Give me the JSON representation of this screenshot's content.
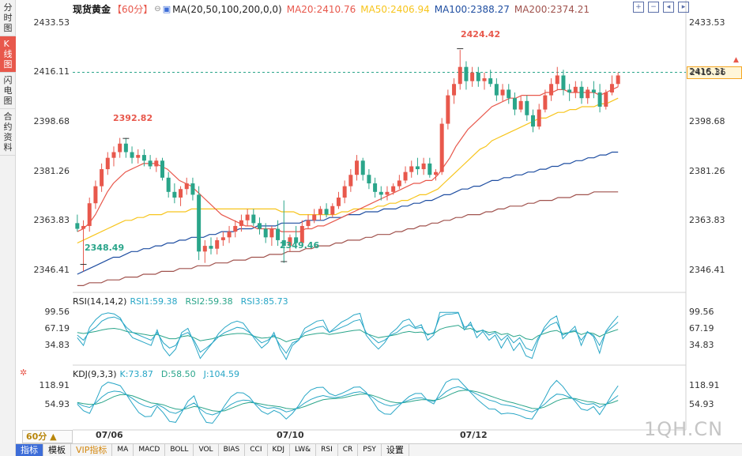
{
  "left_tabs": [
    {
      "label": "分时图",
      "active": false
    },
    {
      "label": "K线图",
      "active": true
    },
    {
      "label": "闪电图",
      "active": false
    },
    {
      "label": "合约资料",
      "active": false
    }
  ],
  "legend": {
    "symbol": "现货黄金",
    "period": "【60分】",
    "ma_label": "MA(20,50,100,200,0,0)",
    "ma20": "MA20:2410.76",
    "ma50": "MA50:2406.94",
    "ma100": "MA100:2388.27",
    "ma200": "MA200:2374.21"
  },
  "rsi_legend": {
    "title": "RSI(14,14,2)",
    "rsi1": "RSI1:59.38",
    "rsi2": "RSI2:59.38",
    "rsi3": "RSI3:85.73"
  },
  "kdj_legend": {
    "title": "KDJ(9,3,3)",
    "k": "K:73.87",
    "d": "D:58.50",
    "j": "J:104.59"
  },
  "price_axis": [
    "2433.53",
    "2416.11",
    "2398.68",
    "2381.26",
    "2363.83",
    "2346.41"
  ],
  "rsi_axis": [
    "99.56",
    "67.19",
    "34.83"
  ],
  "kdj_axis": [
    "118.91",
    "54.93"
  ],
  "current_price": "2415.36",
  "annotations": {
    "high1": "2392.82",
    "low1": "2348.49",
    "low2": "2349.46",
    "high2": "2424.42"
  },
  "dates": [
    "07/06",
    "07/10",
    "07/12"
  ],
  "period_select": "60分 ▲",
  "bottom_tabs": [
    "指标",
    "模板",
    "VIP指标",
    "MA",
    "MACD",
    "BOLL",
    "VOL",
    "BIAS",
    "CCI",
    "KDJ",
    "LW&",
    "RSI",
    "CR",
    "PSY",
    "设置"
  ],
  "watermark": "1QH.CN",
  "colors": {
    "up": "#e8584c",
    "down": "#2aa58a",
    "ma20": "#e8584c",
    "ma50": "#f7c51d",
    "ma100": "#1f4ea1",
    "ma200": "#a0524d",
    "rsi_a": "#28a6c6",
    "rsi_b": "#2aa58a",
    "price_line": "#2aa58a"
  },
  "chart_data": {
    "type": "candlestick",
    "y_range": [
      2340,
      2436
    ],
    "candles": [
      {
        "o": 2363,
        "h": 2366,
        "l": 2360,
        "c": 2361
      },
      {
        "o": 2361,
        "h": 2364,
        "l": 2346,
        "c": 2362
      },
      {
        "o": 2362,
        "h": 2372,
        "l": 2360,
        "c": 2370
      },
      {
        "o": 2370,
        "h": 2378,
        "l": 2368,
        "c": 2376
      },
      {
        "o": 2376,
        "h": 2384,
        "l": 2374,
        "c": 2382
      },
      {
        "o": 2382,
        "h": 2388,
        "l": 2380,
        "c": 2386
      },
      {
        "o": 2386,
        "h": 2390,
        "l": 2383,
        "c": 2388
      },
      {
        "o": 2388,
        "h": 2393,
        "l": 2386,
        "c": 2391
      },
      {
        "o": 2391,
        "h": 2393,
        "l": 2386,
        "c": 2388
      },
      {
        "o": 2388,
        "h": 2390,
        "l": 2384,
        "c": 2386
      },
      {
        "o": 2386,
        "h": 2389,
        "l": 2384,
        "c": 2387
      },
      {
        "o": 2387,
        "h": 2389,
        "l": 2383,
        "c": 2385
      },
      {
        "o": 2385,
        "h": 2387,
        "l": 2382,
        "c": 2383
      },
      {
        "o": 2383,
        "h": 2386,
        "l": 2381,
        "c": 2385
      },
      {
        "o": 2385,
        "h": 2386,
        "l": 2378,
        "c": 2379
      },
      {
        "o": 2379,
        "h": 2381,
        "l": 2372,
        "c": 2374
      },
      {
        "o": 2374,
        "h": 2377,
        "l": 2370,
        "c": 2372
      },
      {
        "o": 2372,
        "h": 2376,
        "l": 2369,
        "c": 2375
      },
      {
        "o": 2375,
        "h": 2379,
        "l": 2373,
        "c": 2377
      },
      {
        "o": 2377,
        "h": 2379,
        "l": 2371,
        "c": 2373
      },
      {
        "o": 2373,
        "h": 2376,
        "l": 2350,
        "c": 2353
      },
      {
        "o": 2353,
        "h": 2357,
        "l": 2349,
        "c": 2355
      },
      {
        "o": 2355,
        "h": 2358,
        "l": 2352,
        "c": 2354
      },
      {
        "o": 2354,
        "h": 2358,
        "l": 2352,
        "c": 2357
      },
      {
        "o": 2357,
        "h": 2360,
        "l": 2355,
        "c": 2358
      },
      {
        "o": 2358,
        "h": 2362,
        "l": 2356,
        "c": 2360
      },
      {
        "o": 2360,
        "h": 2364,
        "l": 2358,
        "c": 2362
      },
      {
        "o": 2362,
        "h": 2366,
        "l": 2360,
        "c": 2364
      },
      {
        "o": 2364,
        "h": 2368,
        "l": 2362,
        "c": 2366
      },
      {
        "o": 2366,
        "h": 2368,
        "l": 2362,
        "c": 2363
      },
      {
        "o": 2363,
        "h": 2365,
        "l": 2359,
        "c": 2361
      },
      {
        "o": 2361,
        "h": 2363,
        "l": 2356,
        "c": 2358
      },
      {
        "o": 2358,
        "h": 2362,
        "l": 2355,
        "c": 2361
      },
      {
        "o": 2361,
        "h": 2364,
        "l": 2355,
        "c": 2357
      },
      {
        "o": 2357,
        "h": 2371,
        "l": 2349,
        "c": 2355
      },
      {
        "o": 2355,
        "h": 2359,
        "l": 2353,
        "c": 2358
      },
      {
        "o": 2358,
        "h": 2362,
        "l": 2354,
        "c": 2356
      },
      {
        "o": 2356,
        "h": 2364,
        "l": 2355,
        "c": 2362
      },
      {
        "o": 2362,
        "h": 2366,
        "l": 2361,
        "c": 2364
      },
      {
        "o": 2364,
        "h": 2368,
        "l": 2363,
        "c": 2366
      },
      {
        "o": 2366,
        "h": 2369,
        "l": 2364,
        "c": 2368
      },
      {
        "o": 2368,
        "h": 2370,
        "l": 2365,
        "c": 2366
      },
      {
        "o": 2366,
        "h": 2370,
        "l": 2365,
        "c": 2369
      },
      {
        "o": 2369,
        "h": 2374,
        "l": 2368,
        "c": 2372
      },
      {
        "o": 2372,
        "h": 2378,
        "l": 2370,
        "c": 2376
      },
      {
        "o": 2376,
        "h": 2382,
        "l": 2374,
        "c": 2380
      },
      {
        "o": 2380,
        "h": 2387,
        "l": 2378,
        "c": 2385
      },
      {
        "o": 2385,
        "h": 2386,
        "l": 2378,
        "c": 2380
      },
      {
        "o": 2380,
        "h": 2382,
        "l": 2375,
        "c": 2377
      },
      {
        "o": 2377,
        "h": 2379,
        "l": 2372,
        "c": 2374
      },
      {
        "o": 2374,
        "h": 2376,
        "l": 2371,
        "c": 2373
      },
      {
        "o": 2373,
        "h": 2376,
        "l": 2371,
        "c": 2374
      },
      {
        "o": 2374,
        "h": 2377,
        "l": 2373,
        "c": 2376
      },
      {
        "o": 2376,
        "h": 2380,
        "l": 2375,
        "c": 2378
      },
      {
        "o": 2378,
        "h": 2383,
        "l": 2377,
        "c": 2381
      },
      {
        "o": 2381,
        "h": 2385,
        "l": 2379,
        "c": 2383
      },
      {
        "o": 2383,
        "h": 2386,
        "l": 2380,
        "c": 2382
      },
      {
        "o": 2382,
        "h": 2386,
        "l": 2380,
        "c": 2384
      },
      {
        "o": 2384,
        "h": 2386,
        "l": 2379,
        "c": 2380
      },
      {
        "o": 2380,
        "h": 2382,
        "l": 2378,
        "c": 2381
      },
      {
        "o": 2381,
        "h": 2400,
        "l": 2380,
        "c": 2398
      },
      {
        "o": 2398,
        "h": 2410,
        "l": 2396,
        "c": 2408
      },
      {
        "o": 2408,
        "h": 2414,
        "l": 2405,
        "c": 2412
      },
      {
        "o": 2412,
        "h": 2424,
        "l": 2410,
        "c": 2418
      },
      {
        "o": 2418,
        "h": 2420,
        "l": 2410,
        "c": 2413
      },
      {
        "o": 2413,
        "h": 2418,
        "l": 2411,
        "c": 2416
      },
      {
        "o": 2416,
        "h": 2418,
        "l": 2411,
        "c": 2413
      },
      {
        "o": 2413,
        "h": 2416,
        "l": 2410,
        "c": 2414
      },
      {
        "o": 2414,
        "h": 2417,
        "l": 2411,
        "c": 2412
      },
      {
        "o": 2412,
        "h": 2414,
        "l": 2406,
        "c": 2408
      },
      {
        "o": 2408,
        "h": 2412,
        "l": 2406,
        "c": 2410
      },
      {
        "o": 2410,
        "h": 2412,
        "l": 2405,
        "c": 2407
      },
      {
        "o": 2407,
        "h": 2409,
        "l": 2401,
        "c": 2403
      },
      {
        "o": 2403,
        "h": 2408,
        "l": 2402,
        "c": 2406
      },
      {
        "o": 2406,
        "h": 2408,
        "l": 2399,
        "c": 2401
      },
      {
        "o": 2401,
        "h": 2403,
        "l": 2395,
        "c": 2397
      },
      {
        "o": 2397,
        "h": 2405,
        "l": 2396,
        "c": 2403
      },
      {
        "o": 2403,
        "h": 2410,
        "l": 2402,
        "c": 2408
      },
      {
        "o": 2408,
        "h": 2414,
        "l": 2406,
        "c": 2412
      },
      {
        "o": 2412,
        "h": 2418,
        "l": 2410,
        "c": 2415
      },
      {
        "o": 2415,
        "h": 2417,
        "l": 2408,
        "c": 2410
      },
      {
        "o": 2410,
        "h": 2412,
        "l": 2406,
        "c": 2409
      },
      {
        "o": 2409,
        "h": 2413,
        "l": 2407,
        "c": 2411
      },
      {
        "o": 2411,
        "h": 2413,
        "l": 2405,
        "c": 2407
      },
      {
        "o": 2407,
        "h": 2411,
        "l": 2405,
        "c": 2410
      },
      {
        "o": 2410,
        "h": 2413,
        "l": 2407,
        "c": 2409
      },
      {
        "o": 2409,
        "h": 2412,
        "l": 2402,
        "c": 2404
      },
      {
        "o": 2404,
        "h": 2410,
        "l": 2403,
        "c": 2409
      },
      {
        "o": 2409,
        "h": 2415,
        "l": 2408,
        "c": 2412
      },
      {
        "o": 2412,
        "h": 2416,
        "l": 2411,
        "c": 2415
      }
    ],
    "ma20": [
      2360,
      2361,
      2363,
      2366,
      2370,
      2374,
      2377,
      2379,
      2381,
      2382,
      2383,
      2384,
      2384,
      2384,
      2383,
      2382,
      2380,
      2378,
      2377,
      2376,
      2374,
      2372,
      2370,
      2368,
      2366,
      2365,
      2364,
      2363,
      2362,
      2362,
      2361,
      2361,
      2361,
      2361,
      2360,
      2360,
      2360,
      2360,
      2361,
      2361,
      2362,
      2362,
      2363,
      2364,
      2365,
      2366,
      2367,
      2368,
      2369,
      2370,
      2371,
      2372,
      2373,
      2374,
      2375,
      2376,
      2377,
      2377,
      2378,
      2378,
      2380,
      2383,
      2386,
      2390,
      2393,
      2396,
      2398,
      2400,
      2402,
      2404,
      2405,
      2406,
      2407,
      2407,
      2408,
      2408,
      2408,
      2408,
      2409,
      2409,
      2410,
      2410,
      2409,
      2409,
      2409,
      2409,
      2409,
      2408,
      2409,
      2410,
      2411
    ],
    "ma50": [
      2356,
      2357,
      2358,
      2359,
      2360,
      2361,
      2362,
      2363,
      2364,
      2364,
      2365,
      2365,
      2366,
      2366,
      2366,
      2367,
      2367,
      2367,
      2367,
      2368,
      2368,
      2368,
      2368,
      2368,
      2368,
      2368,
      2368,
      2368,
      2368,
      2368,
      2368,
      2368,
      2368,
      2368,
      2367,
      2367,
      2367,
      2366,
      2366,
      2366,
      2366,
      2366,
      2366,
      2366,
      2367,
      2367,
      2368,
      2368,
      2368,
      2368,
      2369,
      2369,
      2370,
      2370,
      2371,
      2371,
      2372,
      2373,
      2373,
      2374,
      2375,
      2377,
      2379,
      2381,
      2383,
      2385,
      2387,
      2389,
      2390,
      2392,
      2393,
      2394,
      2395,
      2396,
      2397,
      2398,
      2399,
      2400,
      2400,
      2401,
      2402,
      2402,
      2403,
      2403,
      2404,
      2404,
      2404,
      2405,
      2405,
      2406,
      2407
    ],
    "ma100": [
      2345,
      2346,
      2347,
      2348,
      2349,
      2350,
      2351,
      2351,
      2352,
      2353,
      2353,
      2354,
      2354,
      2355,
      2355,
      2356,
      2356,
      2357,
      2357,
      2358,
      2358,
      2358,
      2359,
      2359,
      2360,
      2360,
      2360,
      2361,
      2361,
      2361,
      2362,
      2362,
      2362,
      2362,
      2363,
      2363,
      2363,
      2363,
      2364,
      2364,
      2364,
      2364,
      2365,
      2365,
      2365,
      2366,
      2366,
      2366,
      2367,
      2367,
      2367,
      2368,
      2368,
      2368,
      2369,
      2369,
      2370,
      2370,
      2371,
      2371,
      2372,
      2373,
      2373,
      2374,
      2375,
      2375,
      2376,
      2376,
      2377,
      2378,
      2378,
      2379,
      2379,
      2380,
      2380,
      2381,
      2381,
      2382,
      2382,
      2383,
      2383,
      2384,
      2384,
      2385,
      2385,
      2386,
      2386,
      2387,
      2387,
      2388,
      2388
    ],
    "ma200": [
      2341,
      2341,
      2342,
      2342,
      2342,
      2343,
      2343,
      2343,
      2344,
      2344,
      2344,
      2345,
      2345,
      2345,
      2346,
      2346,
      2346,
      2347,
      2347,
      2347,
      2348,
      2348,
      2348,
      2349,
      2349,
      2349,
      2350,
      2350,
      2350,
      2351,
      2351,
      2351,
      2352,
      2352,
      2352,
      2353,
      2353,
      2353,
      2354,
      2354,
      2355,
      2355,
      2355,
      2356,
      2356,
      2357,
      2357,
      2357,
      2358,
      2358,
      2359,
      2359,
      2359,
      2360,
      2360,
      2361,
      2361,
      2362,
      2362,
      2363,
      2363,
      2364,
      2364,
      2365,
      2365,
      2366,
      2366,
      2366,
      2367,
      2367,
      2368,
      2368,
      2369,
      2369,
      2369,
      2370,
      2370,
      2371,
      2371,
      2371,
      2372,
      2372,
      2372,
      2373,
      2373,
      2373,
      2374,
      2374,
      2374,
      2374,
      2374
    ],
    "rsi1": [
      55,
      45,
      62,
      70,
      82,
      88,
      90,
      85,
      70,
      60,
      55,
      50,
      45,
      60,
      40,
      30,
      35,
      55,
      60,
      45,
      22,
      30,
      40,
      52,
      60,
      65,
      70,
      68,
      60,
      50,
      40,
      45,
      55,
      35,
      20,
      40,
      45,
      60,
      65,
      70,
      72,
      60,
      65,
      70,
      75,
      82,
      85,
      60,
      50,
      40,
      45,
      55,
      60,
      70,
      75,
      68,
      70,
      55,
      60,
      90,
      95,
      96,
      98,
      70,
      75,
      60,
      65,
      55,
      60,
      45,
      55,
      40,
      50,
      30,
      25,
      50,
      65,
      75,
      80,
      55,
      60,
      65,
      45,
      60,
      55,
      35,
      60,
      70,
      80
    ],
    "rsi2": [
      60,
      58,
      60,
      62,
      65,
      67,
      68,
      66,
      62,
      60,
      58,
      56,
      54,
      56,
      52,
      48,
      48,
      52,
      54,
      50,
      44,
      46,
      48,
      52,
      55,
      57,
      58,
      58,
      56,
      52,
      49,
      50,
      52,
      48,
      42,
      46,
      48,
      54,
      56,
      58,
      59,
      56,
      58,
      60,
      62,
      64,
      65,
      58,
      54,
      50,
      52,
      54,
      56,
      60,
      62,
      60,
      61,
      57,
      58,
      66,
      70,
      72,
      74,
      66,
      68,
      62,
      64,
      60,
      62,
      56,
      58,
      52,
      55,
      48,
      46,
      54,
      58,
      62,
      64,
      58,
      60,
      62,
      56,
      60,
      58,
      52,
      58,
      62,
      66
    ],
    "rsi3": [
      50,
      35,
      70,
      85,
      95,
      98,
      96,
      88,
      65,
      50,
      45,
      40,
      35,
      65,
      30,
      15,
      28,
      60,
      68,
      40,
      10,
      25,
      40,
      58,
      70,
      78,
      82,
      78,
      62,
      45,
      30,
      40,
      60,
      28,
      8,
      35,
      45,
      68,
      75,
      82,
      84,
      60,
      70,
      80,
      86,
      94,
      97,
      55,
      40,
      28,
      40,
      58,
      68,
      82,
      86,
      70,
      75,
      45,
      55,
      99,
      99,
      99,
      99,
      65,
      80,
      50,
      62,
      45,
      55,
      30,
      50,
      25,
      40,
      15,
      10,
      45,
      70,
      85,
      92,
      48,
      60,
      72,
      35,
      62,
      52,
      20,
      62,
      78,
      92
    ],
    "k": [
      60,
      50,
      45,
      60,
      80,
      95,
      100,
      98,
      88,
      75,
      60,
      50,
      45,
      55,
      45,
      30,
      25,
      35,
      50,
      60,
      40,
      25,
      20,
      28,
      40,
      55,
      65,
      70,
      68,
      58,
      48,
      42,
      45,
      40,
      30,
      35,
      45,
      60,
      72,
      80,
      85,
      80,
      78,
      82,
      88,
      95,
      98,
      92,
      80,
      65,
      55,
      50,
      55,
      62,
      70,
      76,
      78,
      70,
      65,
      80,
      98,
      110,
      115,
      108,
      100,
      90,
      80,
      70,
      65,
      55,
      52,
      48,
      42,
      35,
      30,
      40,
      55,
      75,
      90,
      88,
      80,
      72,
      60,
      55,
      58,
      45,
      55,
      70,
      85
    ],
    "d": [
      62,
      58,
      55,
      56,
      62,
      72,
      82,
      88,
      88,
      84,
      76,
      68,
      60,
      58,
      54,
      46,
      40,
      38,
      42,
      48,
      46,
      40,
      34,
      32,
      34,
      42,
      50,
      58,
      62,
      60,
      56,
      52,
      50,
      47,
      42,
      40,
      42,
      48,
      56,
      64,
      71,
      74,
      75,
      77,
      81,
      86,
      90,
      90,
      86,
      79,
      71,
      64,
      61,
      61,
      64,
      68,
      71,
      71,
      69,
      73,
      82,
      92,
      100,
      103,
      102,
      98,
      92,
      85,
      78,
      71,
      65,
      60,
      54,
      48,
      42,
      41,
      46,
      56,
      67,
      74,
      76,
      75,
      70,
      65,
      63,
      57,
      56,
      61,
      69
    ],
    "j": [
      56,
      34,
      25,
      68,
      116,
      130,
      125,
      118,
      88,
      57,
      28,
      14,
      15,
      49,
      27,
      -2,
      -5,
      29,
      66,
      84,
      28,
      -5,
      -8,
      20,
      52,
      81,
      95,
      94,
      80,
      54,
      32,
      22,
      35,
      26,
      6,
      25,
      51,
      84,
      104,
      112,
      113,
      92,
      84,
      92,
      102,
      113,
      114,
      96,
      68,
      37,
      23,
      22,
      43,
      64,
      82,
      92,
      92,
      68,
      57,
      94,
      130,
      140,
      140,
      118,
      96,
      74,
      56,
      40,
      39,
      23,
      26,
      24,
      18,
      9,
      6,
      38,
      73,
      113,
      136,
      116,
      88,
      66,
      40,
      35,
      48,
      21,
      53,
      88,
      118
    ]
  }
}
